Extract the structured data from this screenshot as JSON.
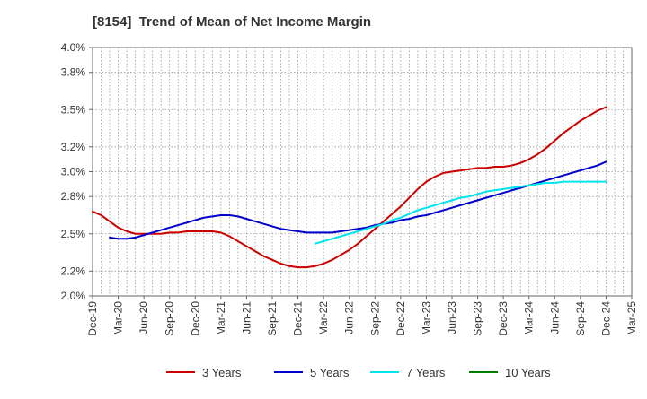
{
  "chart_data": {
    "type": "line",
    "title": "[8154]  Trend of Mean of Net Income Margin",
    "xlabel": "",
    "ylabel": "",
    "x_ticks": [
      "Dec-19",
      "Mar-20",
      "Jun-20",
      "Sep-20",
      "Dec-20",
      "Mar-21",
      "Jun-21",
      "Sep-21",
      "Dec-21",
      "Mar-22",
      "Jun-22",
      "Sep-22",
      "Dec-22",
      "Mar-23",
      "Jun-23",
      "Sep-23",
      "Dec-23",
      "Mar-24",
      "Jun-24",
      "Sep-24",
      "Dec-24",
      "Mar-25"
    ],
    "y_ticks": [
      "2.0%",
      "2.2%",
      "2.5%",
      "2.8%",
      "3.0%",
      "3.2%",
      "3.5%",
      "3.8%",
      "4.0%"
    ],
    "ylim": [
      2.0,
      4.0
    ],
    "grid": true,
    "legend_position": "bottom",
    "series": [
      {
        "name": "3 Years",
        "color": "#cc0000",
        "points": [
          [
            "Dec-19",
            2.68
          ],
          [
            "Jan-20",
            2.65
          ],
          [
            "Feb-20",
            2.6
          ],
          [
            "Mar-20",
            2.55
          ],
          [
            "Apr-20",
            2.52
          ],
          [
            "May-20",
            2.5
          ],
          [
            "Jun-20",
            2.5
          ],
          [
            "Jul-20",
            2.5
          ],
          [
            "Aug-20",
            2.5
          ],
          [
            "Sep-20",
            2.51
          ],
          [
            "Oct-20",
            2.51
          ],
          [
            "Nov-20",
            2.52
          ],
          [
            "Dec-20",
            2.52
          ],
          [
            "Jan-21",
            2.52
          ],
          [
            "Feb-21",
            2.52
          ],
          [
            "Mar-21",
            2.51
          ],
          [
            "Apr-21",
            2.48
          ],
          [
            "May-21",
            2.44
          ],
          [
            "Jun-21",
            2.4
          ],
          [
            "Jul-21",
            2.36
          ],
          [
            "Aug-21",
            2.32
          ],
          [
            "Sep-21",
            2.29
          ],
          [
            "Oct-21",
            2.26
          ],
          [
            "Nov-21",
            2.24
          ],
          [
            "Dec-21",
            2.23
          ],
          [
            "Jan-22",
            2.23
          ],
          [
            "Feb-22",
            2.24
          ],
          [
            "Mar-22",
            2.26
          ],
          [
            "Apr-22",
            2.29
          ],
          [
            "May-22",
            2.33
          ],
          [
            "Jun-22",
            2.37
          ],
          [
            "Jul-22",
            2.42
          ],
          [
            "Aug-22",
            2.48
          ],
          [
            "Sep-22",
            2.54
          ],
          [
            "Oct-22",
            2.6
          ],
          [
            "Nov-22",
            2.66
          ],
          [
            "Dec-22",
            2.72
          ],
          [
            "Jan-23",
            2.79
          ],
          [
            "Feb-23",
            2.86
          ],
          [
            "Mar-23",
            2.92
          ],
          [
            "Apr-23",
            2.96
          ],
          [
            "May-23",
            2.99
          ],
          [
            "Jun-23",
            3.0
          ],
          [
            "Jul-23",
            3.01
          ],
          [
            "Aug-23",
            3.02
          ],
          [
            "Sep-23",
            3.03
          ],
          [
            "Oct-23",
            3.03
          ],
          [
            "Nov-23",
            3.04
          ],
          [
            "Dec-23",
            3.04
          ],
          [
            "Jan-24",
            3.05
          ],
          [
            "Feb-24",
            3.07
          ],
          [
            "Mar-24",
            3.1
          ],
          [
            "Apr-24",
            3.14
          ],
          [
            "May-24",
            3.19
          ],
          [
            "Jun-24",
            3.25
          ],
          [
            "Jul-24",
            3.31
          ],
          [
            "Aug-24",
            3.36
          ],
          [
            "Sep-24",
            3.41
          ],
          [
            "Oct-24",
            3.45
          ],
          [
            "Nov-24",
            3.49
          ],
          [
            "Dec-24",
            3.52
          ]
        ]
      },
      {
        "name": "5 Years",
        "color": "#0000cc",
        "points": [
          [
            "Feb-20",
            2.47
          ],
          [
            "Mar-20",
            2.46
          ],
          [
            "Apr-20",
            2.46
          ],
          [
            "May-20",
            2.47
          ],
          [
            "Jun-20",
            2.49
          ],
          [
            "Jul-20",
            2.51
          ],
          [
            "Aug-20",
            2.53
          ],
          [
            "Sep-20",
            2.55
          ],
          [
            "Oct-20",
            2.57
          ],
          [
            "Nov-20",
            2.59
          ],
          [
            "Dec-20",
            2.61
          ],
          [
            "Jan-21",
            2.63
          ],
          [
            "Feb-21",
            2.64
          ],
          [
            "Mar-21",
            2.65
          ],
          [
            "Apr-21",
            2.65
          ],
          [
            "May-21",
            2.64
          ],
          [
            "Jun-21",
            2.62
          ],
          [
            "Jul-21",
            2.6
          ],
          [
            "Aug-21",
            2.58
          ],
          [
            "Sep-21",
            2.56
          ],
          [
            "Oct-21",
            2.54
          ],
          [
            "Nov-21",
            2.53
          ],
          [
            "Dec-21",
            2.52
          ],
          [
            "Jan-22",
            2.51
          ],
          [
            "Feb-22",
            2.51
          ],
          [
            "Mar-22",
            2.51
          ],
          [
            "Apr-22",
            2.51
          ],
          [
            "May-22",
            2.52
          ],
          [
            "Jun-22",
            2.53
          ],
          [
            "Jul-22",
            2.54
          ],
          [
            "Aug-22",
            2.55
          ],
          [
            "Sep-22",
            2.57
          ],
          [
            "Oct-22",
            2.58
          ],
          [
            "Nov-22",
            2.59
          ],
          [
            "Dec-22",
            2.61
          ],
          [
            "Jan-23",
            2.62
          ],
          [
            "Feb-23",
            2.64
          ],
          [
            "Mar-23",
            2.65
          ],
          [
            "Apr-23",
            2.67
          ],
          [
            "May-23",
            2.69
          ],
          [
            "Jun-23",
            2.71
          ],
          [
            "Jul-23",
            2.73
          ],
          [
            "Aug-23",
            2.75
          ],
          [
            "Sep-23",
            2.77
          ],
          [
            "Oct-23",
            2.79
          ],
          [
            "Nov-23",
            2.81
          ],
          [
            "Dec-23",
            2.83
          ],
          [
            "Jan-24",
            2.85
          ],
          [
            "Feb-24",
            2.87
          ],
          [
            "Mar-24",
            2.89
          ],
          [
            "Apr-24",
            2.91
          ],
          [
            "May-24",
            2.93
          ],
          [
            "Jun-24",
            2.95
          ],
          [
            "Jul-24",
            2.97
          ],
          [
            "Aug-24",
            2.99
          ],
          [
            "Sep-24",
            3.01
          ],
          [
            "Oct-24",
            3.03
          ],
          [
            "Nov-24",
            3.05
          ],
          [
            "Dec-24",
            3.08
          ]
        ]
      },
      {
        "name": "7 Years",
        "color": "#00e5ee",
        "points": [
          [
            "Feb-22",
            2.42
          ],
          [
            "Mar-22",
            2.44
          ],
          [
            "Apr-22",
            2.46
          ],
          [
            "May-22",
            2.48
          ],
          [
            "Jun-22",
            2.5
          ],
          [
            "Jul-22",
            2.52
          ],
          [
            "Aug-22",
            2.54
          ],
          [
            "Sep-22",
            2.56
          ],
          [
            "Oct-22",
            2.58
          ],
          [
            "Nov-22",
            2.61
          ],
          [
            "Dec-22",
            2.63
          ],
          [
            "Jan-23",
            2.66
          ],
          [
            "Feb-23",
            2.69
          ],
          [
            "Mar-23",
            2.71
          ],
          [
            "Apr-23",
            2.73
          ],
          [
            "May-23",
            2.75
          ],
          [
            "Jun-23",
            2.77
          ],
          [
            "Jul-23",
            2.79
          ],
          [
            "Aug-23",
            2.8
          ],
          [
            "Sep-23",
            2.82
          ],
          [
            "Oct-23",
            2.84
          ],
          [
            "Nov-23",
            2.85
          ],
          [
            "Dec-23",
            2.86
          ],
          [
            "Jan-24",
            2.87
          ],
          [
            "Feb-24",
            2.88
          ],
          [
            "Mar-24",
            2.89
          ],
          [
            "Apr-24",
            2.9
          ],
          [
            "May-24",
            2.91
          ],
          [
            "Jun-24",
            2.91
          ],
          [
            "Jul-24",
            2.92
          ],
          [
            "Aug-24",
            2.92
          ],
          [
            "Sep-24",
            2.92
          ],
          [
            "Oct-24",
            2.92
          ],
          [
            "Nov-24",
            2.92
          ],
          [
            "Dec-24",
            2.92
          ]
        ]
      },
      {
        "name": "10 Years",
        "color": "#008000",
        "points": []
      }
    ]
  }
}
